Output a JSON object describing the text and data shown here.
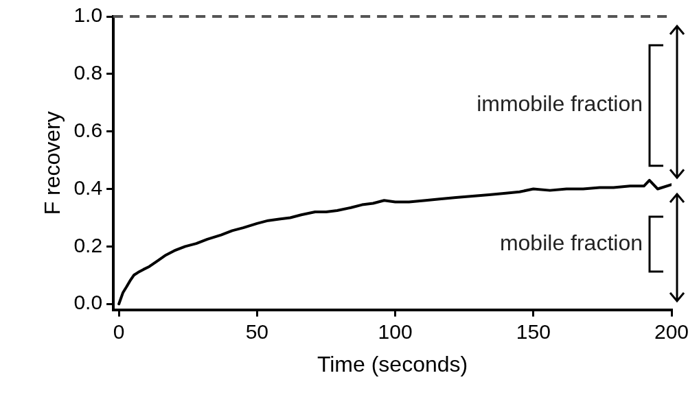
{
  "chart_data": {
    "type": "line",
    "xlabel": "Time (seconds)",
    "ylabel": "F recovery",
    "x": [
      0,
      1.5,
      2.8,
      4,
      5.4,
      7,
      8.9,
      11,
      14,
      17,
      20,
      24,
      28,
      32,
      37,
      41,
      45,
      50,
      54,
      58,
      62,
      66,
      71,
      75,
      79,
      84,
      88,
      92,
      96,
      100,
      105,
      111,
      116,
      122,
      128,
      134,
      140,
      145,
      150,
      156,
      162,
      168,
      174,
      179,
      185,
      190,
      192,
      195,
      200
    ],
    "series": [
      {
        "color": "#000000",
        "values": [
          0,
          0.04,
          0.06,
          0.08,
          0.1,
          0.11,
          0.12,
          0.13,
          0.15,
          0.17,
          0.185,
          0.2,
          0.21,
          0.225,
          0.24,
          0.255,
          0.265,
          0.28,
          0.29,
          0.295,
          0.3,
          0.31,
          0.32,
          0.32,
          0.325,
          0.335,
          0.345,
          0.35,
          0.36,
          0.355,
          0.355,
          0.36,
          0.365,
          0.37,
          0.375,
          0.38,
          0.385,
          0.39,
          0.4,
          0.395,
          0.4,
          0.4,
          0.405,
          0.405,
          0.41,
          0.41,
          0.43,
          0.4,
          0.415
        ]
      }
    ],
    "xlim": [
      -2,
      200
    ],
    "xticks": [
      0,
      50,
      100,
      150,
      200
    ],
    "ylim": [
      -0.02,
      1.0
    ],
    "yticks": [
      {
        "value": 0,
        "label": "0.0"
      },
      {
        "value": 0.2,
        "label": "0.2"
      },
      {
        "value": 0.4,
        "label": "0.4"
      },
      {
        "value": 0.6,
        "label": "0.6"
      },
      {
        "value": 0.8,
        "label": "0.8"
      },
      {
        "value": 1.0,
        "label": "1.0"
      }
    ],
    "grid": false,
    "legend": false,
    "marker": "none",
    "line_style": "solid",
    "ref_lines": [
      {
        "axis": "y",
        "value": 1.0,
        "color": "#555555",
        "line_style": "dashed"
      }
    ],
    "annotations": [
      "immobile fraction",
      "mobile fraction"
    ]
  }
}
